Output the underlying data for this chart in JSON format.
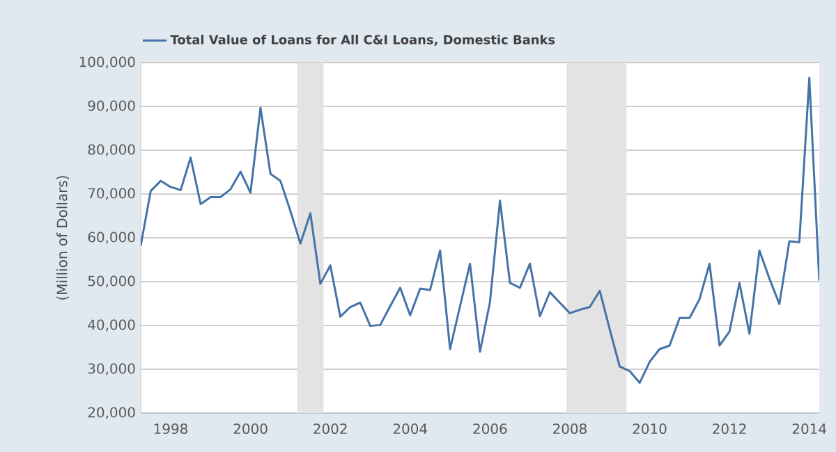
{
  "chart_data": {
    "type": "line",
    "xlabel": null,
    "ylabel": "(Million of Dollars)",
    "x": [
      1997.25,
      1997.5,
      1997.75,
      1998.0,
      1998.25,
      1998.5,
      1998.75,
      1999.0,
      1999.25,
      1999.5,
      1999.75,
      2000.0,
      2000.25,
      2000.5,
      2000.75,
      2001.0,
      2001.25,
      2001.5,
      2001.75,
      2002.0,
      2002.25,
      2002.5,
      2002.75,
      2003.0,
      2003.25,
      2003.5,
      2003.75,
      2004.0,
      2004.25,
      2004.5,
      2004.75,
      2005.0,
      2005.25,
      2005.5,
      2005.75,
      2006.0,
      2006.25,
      2006.5,
      2006.75,
      2007.0,
      2007.25,
      2007.5,
      2007.75,
      2008.0,
      2008.25,
      2008.5,
      2008.75,
      2009.0,
      2009.25,
      2009.5,
      2009.75,
      2010.0,
      2010.25,
      2010.5,
      2010.75,
      2011.0,
      2011.25,
      2011.5,
      2011.75,
      2012.0,
      2012.25,
      2012.5,
      2012.75,
      2013.0,
      2013.25,
      2013.5,
      2013.75,
      2014.0,
      2014.25
    ],
    "series": [
      {
        "name": "Total Value of Loans for All C&I Loans, Domestic Banks",
        "color": "#4572a7",
        "values": [
          58200,
          70700,
          73000,
          71600,
          70900,
          78300,
          67700,
          69300,
          69300,
          71100,
          75100,
          70300,
          89700,
          74600,
          73000,
          66100,
          58700,
          65600,
          49500,
          53700,
          42000,
          44200,
          45200,
          39900,
          40100,
          44400,
          48600,
          42300,
          48400,
          48100,
          57100,
          34600,
          44400,
          54100,
          34000,
          45400,
          68500,
          49700,
          48600,
          54100,
          42100,
          47600,
          45200,
          42800,
          43600,
          44200,
          47900,
          39100,
          30600,
          29600,
          26900,
          31700,
          34600,
          35400,
          41700,
          41700,
          46000,
          54100,
          35400,
          38600,
          49700,
          38100,
          57100,
          50700,
          44900,
          59200,
          59000,
          96500,
          50200
        ]
      }
    ],
    "xlim": [
      1997.25,
      2014.25
    ],
    "xticks": [
      1998,
      2000,
      2002,
      2004,
      2006,
      2008,
      2010,
      2012,
      2014
    ],
    "ylim": [
      20000,
      100000
    ],
    "yticks": [
      {
        "value": 20000,
        "label": "20,000"
      },
      {
        "value": 30000,
        "label": "30,000"
      },
      {
        "value": 40000,
        "label": "40,000"
      },
      {
        "value": 50000,
        "label": "50,000"
      },
      {
        "value": 60000,
        "label": "60,000"
      },
      {
        "value": 70000,
        "label": "70,000"
      },
      {
        "value": 80000,
        "label": "80,000"
      },
      {
        "value": 90000,
        "label": "90,000"
      },
      {
        "value": 100000,
        "label": "100,000"
      }
    ],
    "bands": [
      {
        "axis": "x",
        "from": 2001.17,
        "to": 2001.83,
        "color": "#e3e3e3"
      },
      {
        "axis": "x",
        "from": 2007.92,
        "to": 2009.42,
        "color": "#e3e3e3"
      }
    ],
    "grid": "y",
    "legend": "top left",
    "marker": "none",
    "line_style": "solid"
  }
}
